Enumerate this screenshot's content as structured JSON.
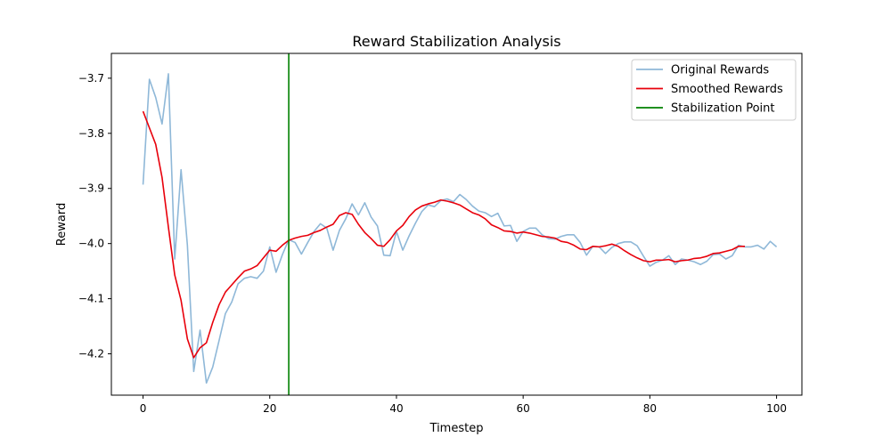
{
  "chart_data": {
    "type": "line",
    "title": "Reward Stabilization Analysis",
    "xlabel": "Timestep",
    "ylabel": "Reward",
    "xlim": [
      -5,
      104
    ],
    "ylim": [
      -4.275,
      -3.655
    ],
    "x_ticks": [
      0,
      20,
      40,
      60,
      80,
      100
    ],
    "x_tick_labels": [
      "0",
      "20",
      "40",
      "60",
      "80",
      "100"
    ],
    "y_ticks": [
      -4.2,
      -4.1,
      -4.0,
      -3.9,
      -3.8,
      -3.7
    ],
    "y_tick_labels": [
      "−4.2",
      "−4.1",
      "−4.0",
      "−3.9",
      "−3.8",
      "−3.7"
    ],
    "grid": false,
    "legend_position": "top-right",
    "series": [
      {
        "name": "Original Rewards",
        "color": "#8fb8d8",
        "x_start": 0,
        "values": [
          -3.893,
          -3.702,
          -3.735,
          -3.783,
          -3.692,
          -4.028,
          -3.866,
          -4.003,
          -4.232,
          -4.157,
          -4.253,
          -4.224,
          -4.176,
          -4.127,
          -4.106,
          -4.073,
          -4.063,
          -4.06,
          -4.063,
          -4.05,
          -4.006,
          -4.052,
          -4.02,
          -3.993,
          -3.998,
          -4.019,
          -3.998,
          -3.978,
          -3.964,
          -3.972,
          -4.012,
          -3.976,
          -3.955,
          -3.928,
          -3.948,
          -3.926,
          -3.952,
          -3.968,
          -4.021,
          -4.022,
          -3.978,
          -4.012,
          -3.986,
          -3.963,
          -3.942,
          -3.93,
          -3.933,
          -3.922,
          -3.919,
          -3.924,
          -3.911,
          -3.92,
          -3.932,
          -3.941,
          -3.944,
          -3.951,
          -3.945,
          -3.968,
          -3.967,
          -3.996,
          -3.978,
          -3.972,
          -3.972,
          -3.984,
          -3.991,
          -3.992,
          -3.987,
          -3.984,
          -3.984,
          -3.998,
          -4.021,
          -4.005,
          -4.006,
          -4.018,
          -4.007,
          -4.0,
          -3.997,
          -3.997,
          -4.004,
          -4.023,
          -4.041,
          -4.034,
          -4.03,
          -4.022,
          -4.038,
          -4.028,
          -4.03,
          -4.033,
          -4.038,
          -4.032,
          -4.02,
          -4.019,
          -4.028,
          -4.022,
          -4.003,
          -4.006,
          -4.006,
          -4.003,
          -4.01,
          -3.996,
          -4.006
        ]
      },
      {
        "name": "Smoothed Rewards",
        "color": "#e8000b",
        "x_start": 0,
        "values": [
          -3.76,
          -3.79,
          -3.82,
          -3.88,
          -3.97,
          -4.057,
          -4.103,
          -4.173,
          -4.207,
          -4.189,
          -4.18,
          -4.143,
          -4.111,
          -4.088,
          -4.075,
          -4.062,
          -4.05,
          -4.046,
          -4.04,
          -4.026,
          -4.012,
          -4.014,
          -4.003,
          -3.994,
          -3.99,
          -3.987,
          -3.985,
          -3.98,
          -3.976,
          -3.97,
          -3.965,
          -3.949,
          -3.944,
          -3.947,
          -3.965,
          -3.98,
          -3.991,
          -4.003,
          -4.005,
          -3.993,
          -3.977,
          -3.967,
          -3.951,
          -3.939,
          -3.932,
          -3.928,
          -3.925,
          -3.921,
          -3.923,
          -3.926,
          -3.93,
          -3.937,
          -3.944,
          -3.948,
          -3.955,
          -3.966,
          -3.971,
          -3.977,
          -3.978,
          -3.981,
          -3.979,
          -3.981,
          -3.984,
          -3.987,
          -3.988,
          -3.99,
          -3.996,
          -3.998,
          -4.003,
          -4.01,
          -4.011,
          -4.005,
          -4.006,
          -4.004,
          -4.001,
          -4.005,
          -4.013,
          -4.02,
          -4.026,
          -4.031,
          -4.033,
          -4.03,
          -4.03,
          -4.029,
          -4.033,
          -4.031,
          -4.03,
          -4.027,
          -4.026,
          -4.023,
          -4.018,
          -4.017,
          -4.014,
          -4.011,
          -4.005,
          -4.005
        ]
      },
      {
        "name": "Stabilization Point",
        "color": "#008000",
        "type": "vline",
        "x": 23
      }
    ]
  }
}
